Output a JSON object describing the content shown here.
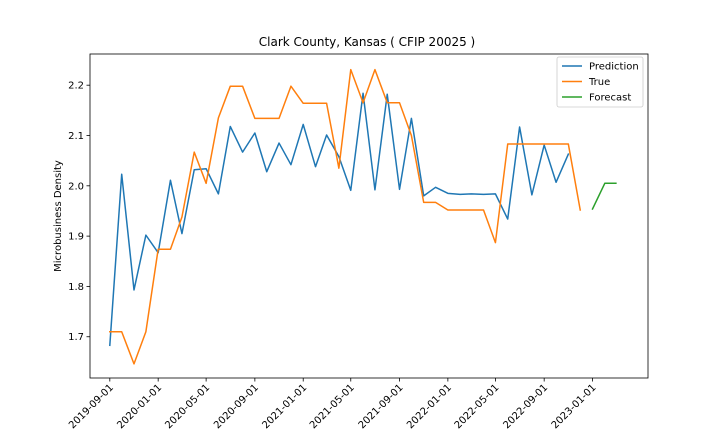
{
  "chart_data": {
    "type": "line",
    "title": "Clark County, Kansas ( CFIP 20025 )",
    "xlabel": "",
    "ylabel": "Microbusiness Density",
    "ylim": [
      1.618,
      2.262
    ],
    "y_ticks": [
      1.7,
      1.8,
      1.9,
      2.0,
      2.1,
      2.2
    ],
    "y_tick_labels": [
      "1.7",
      "1.8",
      "1.9",
      "2.0",
      "2.1",
      "2.2"
    ],
    "xlim": [
      "2019-07-13",
      "2023-05-21"
    ],
    "x_ticks": [
      "2019-09-01",
      "2020-01-01",
      "2020-05-01",
      "2020-09-01",
      "2021-01-01",
      "2021-05-01",
      "2021-09-01",
      "2022-01-01",
      "2022-05-01",
      "2022-09-01",
      "2023-01-01"
    ],
    "grid": false,
    "legend": {
      "position": "top-right",
      "entries": [
        "Prediction",
        "True",
        "Forecast"
      ]
    },
    "series": [
      {
        "name": "Prediction",
        "color": "#1f77b4",
        "x": [
          "2019-09-01",
          "2019-10-01",
          "2019-11-01",
          "2019-12-01",
          "2020-01-01",
          "2020-02-01",
          "2020-03-01",
          "2020-04-01",
          "2020-05-01",
          "2020-06-01",
          "2020-07-01",
          "2020-08-01",
          "2020-09-01",
          "2020-10-01",
          "2020-11-01",
          "2020-12-01",
          "2021-01-01",
          "2021-02-01",
          "2021-03-01",
          "2021-04-01",
          "2021-05-01",
          "2021-06-01",
          "2021-07-01",
          "2021-08-01",
          "2021-09-01",
          "2021-10-01",
          "2021-11-01",
          "2021-12-01",
          "2022-01-01",
          "2022-02-01",
          "2022-03-01",
          "2022-04-01",
          "2022-05-01",
          "2022-06-01",
          "2022-07-01",
          "2022-08-01",
          "2022-09-01",
          "2022-10-01",
          "2022-11-01"
        ],
        "values": [
          1.683,
          2.023,
          1.793,
          1.902,
          1.867,
          2.011,
          1.905,
          2.032,
          2.034,
          1.984,
          2.118,
          2.067,
          2.105,
          2.028,
          2.085,
          2.042,
          2.122,
          2.038,
          2.101,
          2.058,
          1.991,
          2.184,
          1.992,
          2.182,
          1.993,
          2.134,
          1.98,
          1.997,
          1.985,
          1.983,
          1.984,
          1.983,
          1.984,
          1.934,
          2.117,
          1.982,
          2.081,
          2.007,
          2.063
        ]
      },
      {
        "name": "True",
        "color": "#ff7f0e",
        "x": [
          "2019-09-01",
          "2019-10-01",
          "2019-11-01",
          "2019-12-01",
          "2020-01-01",
          "2020-02-01",
          "2020-03-01",
          "2020-04-01",
          "2020-05-01",
          "2020-06-01",
          "2020-07-01",
          "2020-08-01",
          "2020-09-01",
          "2020-10-01",
          "2020-11-01",
          "2020-12-01",
          "2021-01-01",
          "2021-02-01",
          "2021-03-01",
          "2021-04-01",
          "2021-05-01",
          "2021-06-01",
          "2021-07-01",
          "2021-08-01",
          "2021-09-01",
          "2021-10-01",
          "2021-11-01",
          "2021-12-01",
          "2022-01-01",
          "2022-02-01",
          "2022-03-01",
          "2022-04-01",
          "2022-05-01",
          "2022-06-01",
          "2022-07-01",
          "2022-08-01",
          "2022-09-01",
          "2022-10-01",
          "2022-11-01",
          "2022-12-01"
        ],
        "values": [
          1.71,
          1.71,
          1.646,
          1.71,
          1.874,
          1.874,
          1.938,
          2.067,
          2.005,
          2.135,
          2.198,
          2.198,
          2.134,
          2.134,
          2.134,
          2.198,
          2.164,
          2.164,
          2.164,
          2.035,
          2.231,
          2.165,
          2.231,
          2.165,
          2.165,
          2.1,
          1.967,
          1.967,
          1.952,
          1.952,
          1.952,
          1.952,
          1.887,
          2.083,
          2.083,
          2.083,
          2.083,
          2.083,
          2.083,
          1.952
        ]
      },
      {
        "name": "Forecast",
        "color": "#2ca02c",
        "x": [
          "2023-01-01",
          "2023-02-01",
          "2023-03-01"
        ],
        "values": [
          1.954,
          2.005,
          2.005
        ]
      }
    ]
  }
}
